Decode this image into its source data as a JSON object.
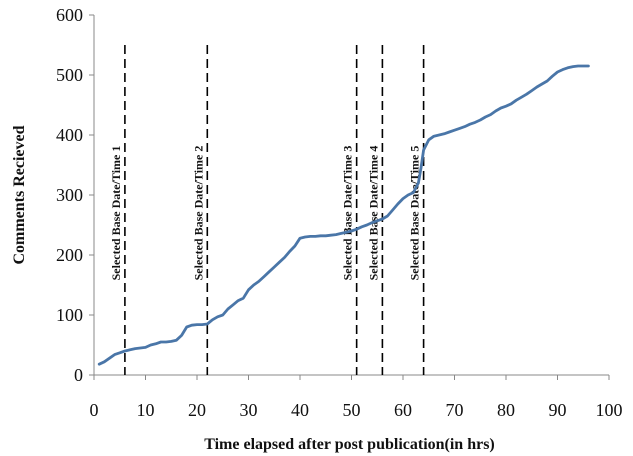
{
  "chart_data": {
    "type": "line",
    "xlabel": "Time elapsed after post publication(in hrs)",
    "ylabel": "Comments Recieved",
    "xlim": [
      0,
      100
    ],
    "ylim": [
      0,
      600
    ],
    "xticks": [
      0,
      10,
      20,
      30,
      40,
      50,
      60,
      70,
      80,
      90,
      100
    ],
    "yticks": [
      0,
      100,
      200,
      300,
      400,
      500,
      600
    ],
    "grid": false,
    "series": [
      {
        "color": "#4a76a8",
        "x": [
          1,
          2,
          3,
          4,
          5,
          6,
          7,
          8,
          9,
          10,
          11,
          12,
          13,
          14,
          15,
          16,
          17,
          18,
          19,
          20,
          21,
          22,
          23,
          24,
          25,
          26,
          27,
          28,
          29,
          30,
          31,
          32,
          33,
          34,
          35,
          36,
          37,
          38,
          39,
          40,
          41,
          42,
          43,
          44,
          45,
          46,
          47,
          48,
          49,
          50,
          51,
          52,
          53,
          54,
          55,
          56,
          57,
          58,
          59,
          60,
          61,
          62,
          63,
          63.5,
          64,
          65,
          66,
          67,
          68,
          69,
          70,
          71,
          72,
          73,
          74,
          75,
          76,
          77,
          78,
          79,
          80,
          81,
          82,
          83,
          84,
          85,
          86,
          87,
          88,
          89,
          90,
          91,
          92,
          93,
          94,
          95,
          96
        ],
        "y": [
          18,
          22,
          28,
          34,
          37,
          40,
          42,
          44,
          45,
          46,
          50,
          52,
          55,
          55,
          56,
          58,
          66,
          80,
          83,
          84,
          84,
          85,
          92,
          97,
          100,
          110,
          117,
          124,
          128,
          142,
          150,
          156,
          164,
          172,
          180,
          188,
          196,
          206,
          215,
          228,
          230,
          231,
          231,
          232,
          232,
          233,
          234,
          236,
          238,
          240,
          243,
          247,
          250,
          254,
          257,
          260,
          265,
          275,
          285,
          294,
          300,
          304,
          320,
          345,
          375,
          392,
          398,
          400,
          402,
          405,
          408,
          411,
          414,
          418,
          421,
          425,
          430,
          434,
          440,
          445,
          448,
          452,
          458,
          463,
          468,
          474,
          480,
          485,
          490,
          498,
          505,
          509,
          512,
          514,
          515,
          515,
          515
        ]
      }
    ],
    "markers": [
      {
        "x": 6,
        "label": "Selected Base Date/Time 1"
      },
      {
        "x": 22,
        "label": "Selected Base Date/Time 2"
      },
      {
        "x": 51,
        "label": "Selected Base Date/Time 3"
      },
      {
        "x": 56,
        "label": "Selected Base Date/Time 4"
      },
      {
        "x": 64,
        "label": "Selected Base Date/Time 5"
      }
    ],
    "marker_top": 550
  }
}
